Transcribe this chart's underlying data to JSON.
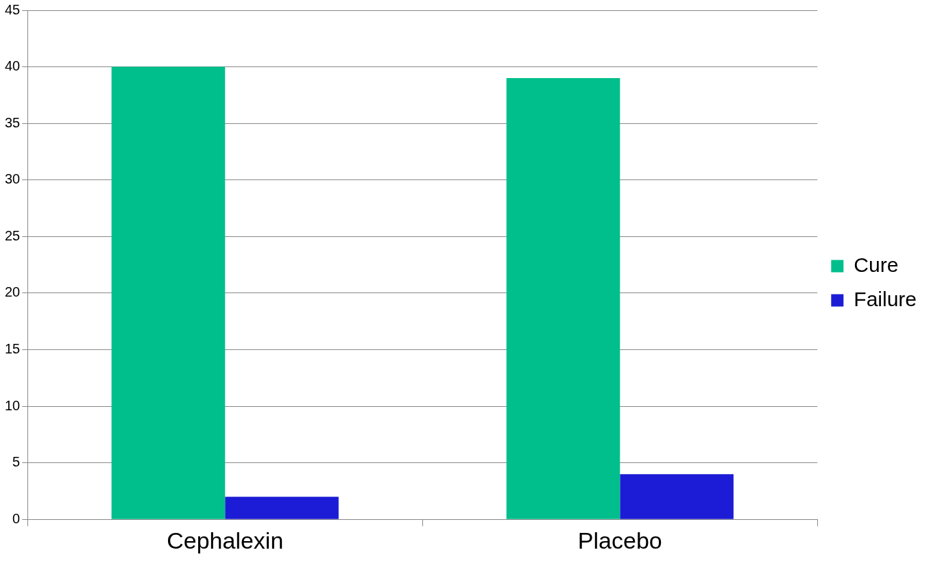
{
  "chart_data": {
    "type": "bar",
    "categories": [
      "Cephalexin",
      "Placebo"
    ],
    "series": [
      {
        "name": "Cure",
        "color": "#00bf8c",
        "values": [
          40,
          39
        ]
      },
      {
        "name": "Failure",
        "color": "#1c1cd6",
        "values": [
          2,
          4
        ]
      }
    ],
    "ylim": [
      0,
      45
    ],
    "yticks": [
      0,
      5,
      10,
      15,
      20,
      25,
      30,
      35,
      40,
      45
    ],
    "grid": "y",
    "legend": "right"
  }
}
